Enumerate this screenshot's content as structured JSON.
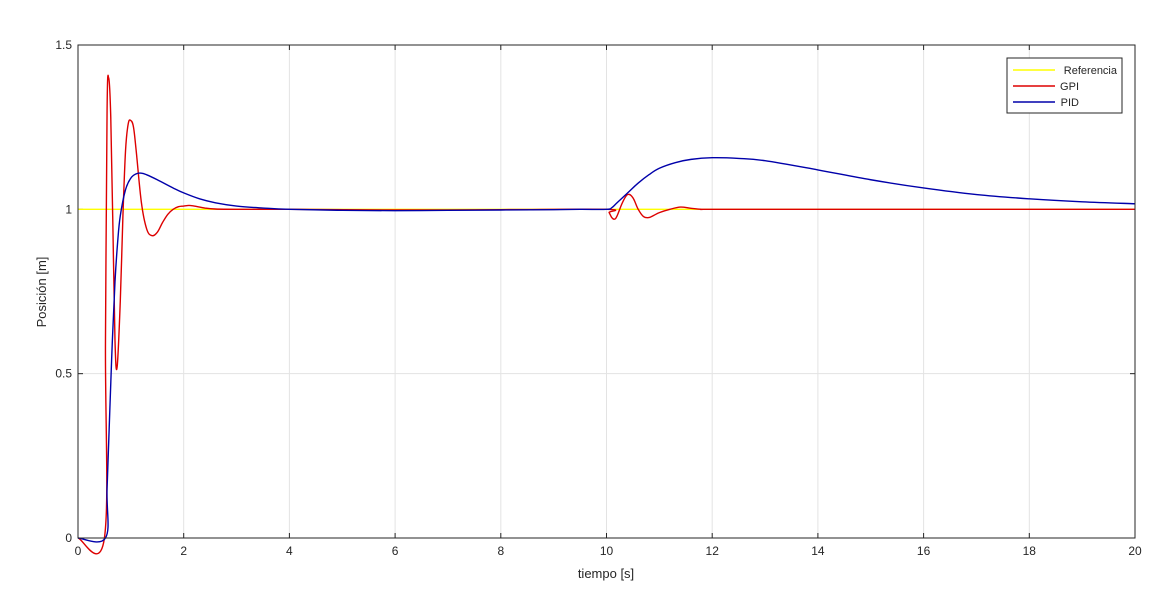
{
  "chart_data": {
    "type": "line",
    "title": "",
    "xlabel": "tiempo [s]",
    "ylabel": "Posición [m]",
    "xlim": [
      0,
      20
    ],
    "ylim": [
      0,
      1.5
    ],
    "xticks": [
      0,
      2,
      4,
      6,
      8,
      10,
      12,
      14,
      16,
      18,
      20
    ],
    "yticks": [
      0,
      0.5,
      1,
      1.5
    ],
    "grid": true,
    "legend_position": "top-right",
    "series": [
      {
        "name": "Referencia",
        "color": "#ffff00",
        "x": [
          0,
          20
        ],
        "y": [
          1,
          1
        ]
      },
      {
        "name": "GPI",
        "color": "#dd0000",
        "x": [
          0,
          0.5,
          0.52,
          0.55,
          0.58,
          0.62,
          0.66,
          0.7,
          0.74,
          0.8,
          0.85,
          0.9,
          0.95,
          1.0,
          1.05,
          1.1,
          1.2,
          1.3,
          1.4,
          1.5,
          1.6,
          1.7,
          1.8,
          1.9,
          2.0,
          2.1,
          2.2,
          2.4,
          2.6,
          3.0,
          4.0,
          6.0,
          8.0,
          10.0,
          10.05,
          10.1,
          10.15,
          10.2,
          10.3,
          10.4,
          10.5,
          10.6,
          10.7,
          10.8,
          10.9,
          11.0,
          11.2,
          11.4,
          11.6,
          11.8,
          12.0,
          14.0,
          16.0,
          18.0,
          20.0
        ],
        "y": [
          0,
          0,
          0.6,
          1.3,
          1.4,
          1.28,
          0.95,
          0.6,
          0.52,
          0.72,
          0.98,
          1.18,
          1.26,
          1.27,
          1.25,
          1.18,
          1.02,
          0.94,
          0.92,
          0.93,
          0.96,
          0.985,
          1.0,
          1.008,
          1.01,
          1.012,
          1.01,
          1.004,
          1.001,
          1.0,
          1.0,
          0.998,
          0.999,
          1.0,
          0.99,
          0.975,
          0.97,
          0.98,
          1.02,
          1.045,
          1.035,
          1.0,
          0.978,
          0.975,
          0.982,
          0.99,
          1.0,
          1.007,
          1.003,
          1.0,
          1.0,
          1.0,
          1.0,
          1.0,
          1.0
        ]
      },
      {
        "name": "PID",
        "color": "#0000aa",
        "x": [
          0,
          0.52,
          0.55,
          0.6,
          0.65,
          0.7,
          0.75,
          0.8,
          0.9,
          1.0,
          1.1,
          1.2,
          1.3,
          1.5,
          1.8,
          2.0,
          2.3,
          2.6,
          3.0,
          3.5,
          4.0,
          5.0,
          6.0,
          7.0,
          8.0,
          9.0,
          9.5,
          10.0,
          10.1,
          10.2,
          10.4,
          10.6,
          10.8,
          11.0,
          11.3,
          11.6,
          12.0,
          12.5,
          13.0,
          14.0,
          15.0,
          16.0,
          17.0,
          18.0,
          19.0,
          20.0
        ],
        "y": [
          0,
          0,
          0.15,
          0.38,
          0.6,
          0.78,
          0.9,
          0.98,
          1.06,
          1.095,
          1.108,
          1.11,
          1.105,
          1.09,
          1.065,
          1.05,
          1.032,
          1.02,
          1.01,
          1.004,
          1.0,
          0.997,
          0.996,
          0.997,
          0.998,
          0.999,
          1.0,
          1.0,
          1.005,
          1.02,
          1.05,
          1.08,
          1.105,
          1.125,
          1.142,
          1.152,
          1.157,
          1.155,
          1.148,
          1.12,
          1.09,
          1.065,
          1.045,
          1.032,
          1.023,
          1.017
        ]
      }
    ]
  }
}
